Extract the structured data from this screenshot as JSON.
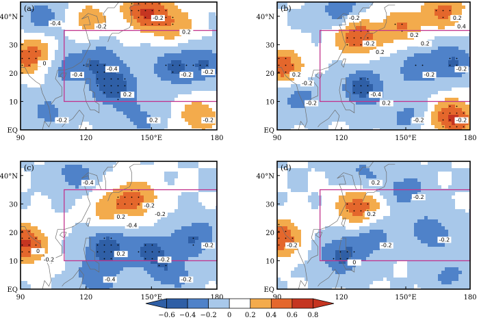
{
  "chart_data": [
    {
      "type": "heatmap",
      "panel_label": "(a)",
      "x_ticks": [
        "90",
        "120",
        "150°E",
        "180"
      ],
      "y_ticks": [
        "EQ",
        "10",
        "20",
        "30",
        "40°N"
      ],
      "xlim": [
        90,
        180
      ],
      "ylim": [
        0,
        45
      ],
      "box": {
        "lon": [
          110,
          180
        ],
        "lat": [
          10,
          35
        ]
      },
      "contour_labels": [
        "-0.2",
        "0.2",
        "-0.2",
        "0",
        "0.2",
        "-0.2",
        "-0.2",
        "-0.4",
        "-0.4",
        "-0.4",
        "-0.2",
        "-0.2",
        "0.2"
      ],
      "centers": [
        {
          "lon": 147,
          "lat": 42,
          "v": 0.6
        },
        {
          "lon": 160,
          "lat": 37,
          "v": 0.35
        },
        {
          "lon": 121,
          "lat": 39,
          "v": 0.3
        },
        {
          "lon": 95,
          "lat": 26,
          "v": 0.55
        },
        {
          "lon": 133,
          "lat": 15,
          "v": -0.55
        },
        {
          "lon": 160,
          "lat": 22,
          "v": -0.4
        },
        {
          "lon": 175,
          "lat": 23,
          "v": -0.35
        },
        {
          "lon": 126,
          "lat": 24,
          "v": -0.35
        },
        {
          "lon": 110,
          "lat": 22,
          "v": -0.3
        },
        {
          "lon": 100,
          "lat": 40,
          "v": -0.3
        },
        {
          "lon": 172,
          "lat": 5,
          "v": 0.35
        },
        {
          "lon": 103,
          "lat": 6,
          "v": -0.25
        },
        {
          "lon": 145,
          "lat": 4,
          "v": -0.25
        }
      ]
    },
    {
      "type": "heatmap",
      "panel_label": "(b)",
      "x_ticks": [
        "90",
        "120",
        "150°E",
        "180"
      ],
      "y_ticks": [
        "EQ",
        "10",
        "20",
        "30",
        "40°N"
      ],
      "xlim": [
        90,
        180
      ],
      "ylim": [
        0,
        45
      ],
      "box": {
        "lon": [
          110,
          180
        ],
        "lat": [
          10,
          35
        ]
      },
      "contour_labels": [
        "-0.2",
        "0.2",
        "0.2",
        "0.2",
        "-0.2",
        "-0.4",
        "-0.2",
        "-0.2",
        "-0.2",
        "-0.2",
        "-0.2",
        "0.2",
        "0.2",
        "0.4",
        "-0.2",
        "-0.2",
        "0.2"
      ],
      "centers": [
        {
          "lon": 127,
          "lat": 33,
          "v": 0.6
        },
        {
          "lon": 148,
          "lat": 36,
          "v": 0.4
        },
        {
          "lon": 168,
          "lat": 42,
          "v": 0.45
        },
        {
          "lon": 93,
          "lat": 22,
          "v": 0.55
        },
        {
          "lon": 172,
          "lat": 4,
          "v": 0.65
        },
        {
          "lon": 130,
          "lat": 15,
          "v": -0.5
        },
        {
          "lon": 155,
          "lat": 22,
          "v": -0.35
        },
        {
          "lon": 172,
          "lat": 24,
          "v": -0.4
        },
        {
          "lon": 120,
          "lat": 42,
          "v": -0.35
        },
        {
          "lon": 100,
          "lat": 12,
          "v": -0.3
        },
        {
          "lon": 150,
          "lat": 5,
          "v": -0.25
        }
      ]
    },
    {
      "type": "heatmap",
      "panel_label": "(c)",
      "x_ticks": [
        "90",
        "120",
        "150°E",
        "180"
      ],
      "y_ticks": [
        "EQ",
        "10",
        "20",
        "30",
        "40°N"
      ],
      "xlim": [
        90,
        180
      ],
      "ylim": [
        0,
        45
      ],
      "box": {
        "lon": [
          110,
          180
        ],
        "lat": [
          10,
          35
        ]
      },
      "contour_labels": [
        "-0.2",
        "0.2",
        "0",
        "0.2",
        "-0.2",
        "-0.2",
        "-0.4",
        "-0.4",
        "-0.2",
        "-0.2",
        "-0.4",
        "-0.2"
      ],
      "centers": [
        {
          "lon": 143,
          "lat": 32,
          "v": 0.45
        },
        {
          "lon": 130,
          "lat": 28,
          "v": 0.3
        },
        {
          "lon": 92,
          "lat": 16,
          "v": 0.65
        },
        {
          "lon": 130,
          "lat": 15,
          "v": -0.5
        },
        {
          "lon": 150,
          "lat": 13,
          "v": -0.45
        },
        {
          "lon": 170,
          "lat": 18,
          "v": -0.4
        },
        {
          "lon": 115,
          "lat": 40,
          "v": -0.3
        },
        {
          "lon": 125,
          "lat": 4,
          "v": -0.35
        },
        {
          "lon": 160,
          "lat": 5,
          "v": -0.3
        }
      ]
    },
    {
      "type": "heatmap",
      "panel_label": "(d)",
      "x_ticks": [
        "90",
        "120",
        "150°E",
        "180"
      ],
      "y_ticks": [
        "EQ",
        "10",
        "20",
        "30",
        "40°N"
      ],
      "xlim": [
        90,
        180
      ],
      "ylim": [
        0,
        45
      ],
      "box": {
        "lon": [
          110,
          180
        ],
        "lat": [
          10,
          35
        ]
      },
      "contour_labels": [
        "0.2",
        "-0.2",
        "0",
        "-0.2",
        "-0.2",
        "-0.2",
        "0.2"
      ],
      "centers": [
        {
          "lon": 128,
          "lat": 29,
          "v": 0.55
        },
        {
          "lon": 91,
          "lat": 18,
          "v": 0.6
        },
        {
          "lon": 120,
          "lat": 12,
          "v": -0.45
        },
        {
          "lon": 135,
          "lat": 18,
          "v": -0.3
        },
        {
          "lon": 162,
          "lat": 20,
          "v": -0.35
        },
        {
          "lon": 150,
          "lat": 35,
          "v": -0.3
        },
        {
          "lon": 130,
          "lat": 40,
          "v": -0.25
        },
        {
          "lon": 170,
          "lat": 5,
          "v": -0.25
        }
      ]
    }
  ],
  "colorbar": {
    "labels": [
      "−0.6",
      "−0.4",
      "−0.2",
      "0",
      "0.2",
      "0.4",
      "0.6",
      "0.8"
    ],
    "colors": [
      "#2f5fa6",
      "#4f82c9",
      "#a8c8ea",
      "#ffffff",
      "#ffffff",
      "#f3ab4c",
      "#e4672c",
      "#c53521"
    ],
    "box_color": "#c2338c"
  }
}
